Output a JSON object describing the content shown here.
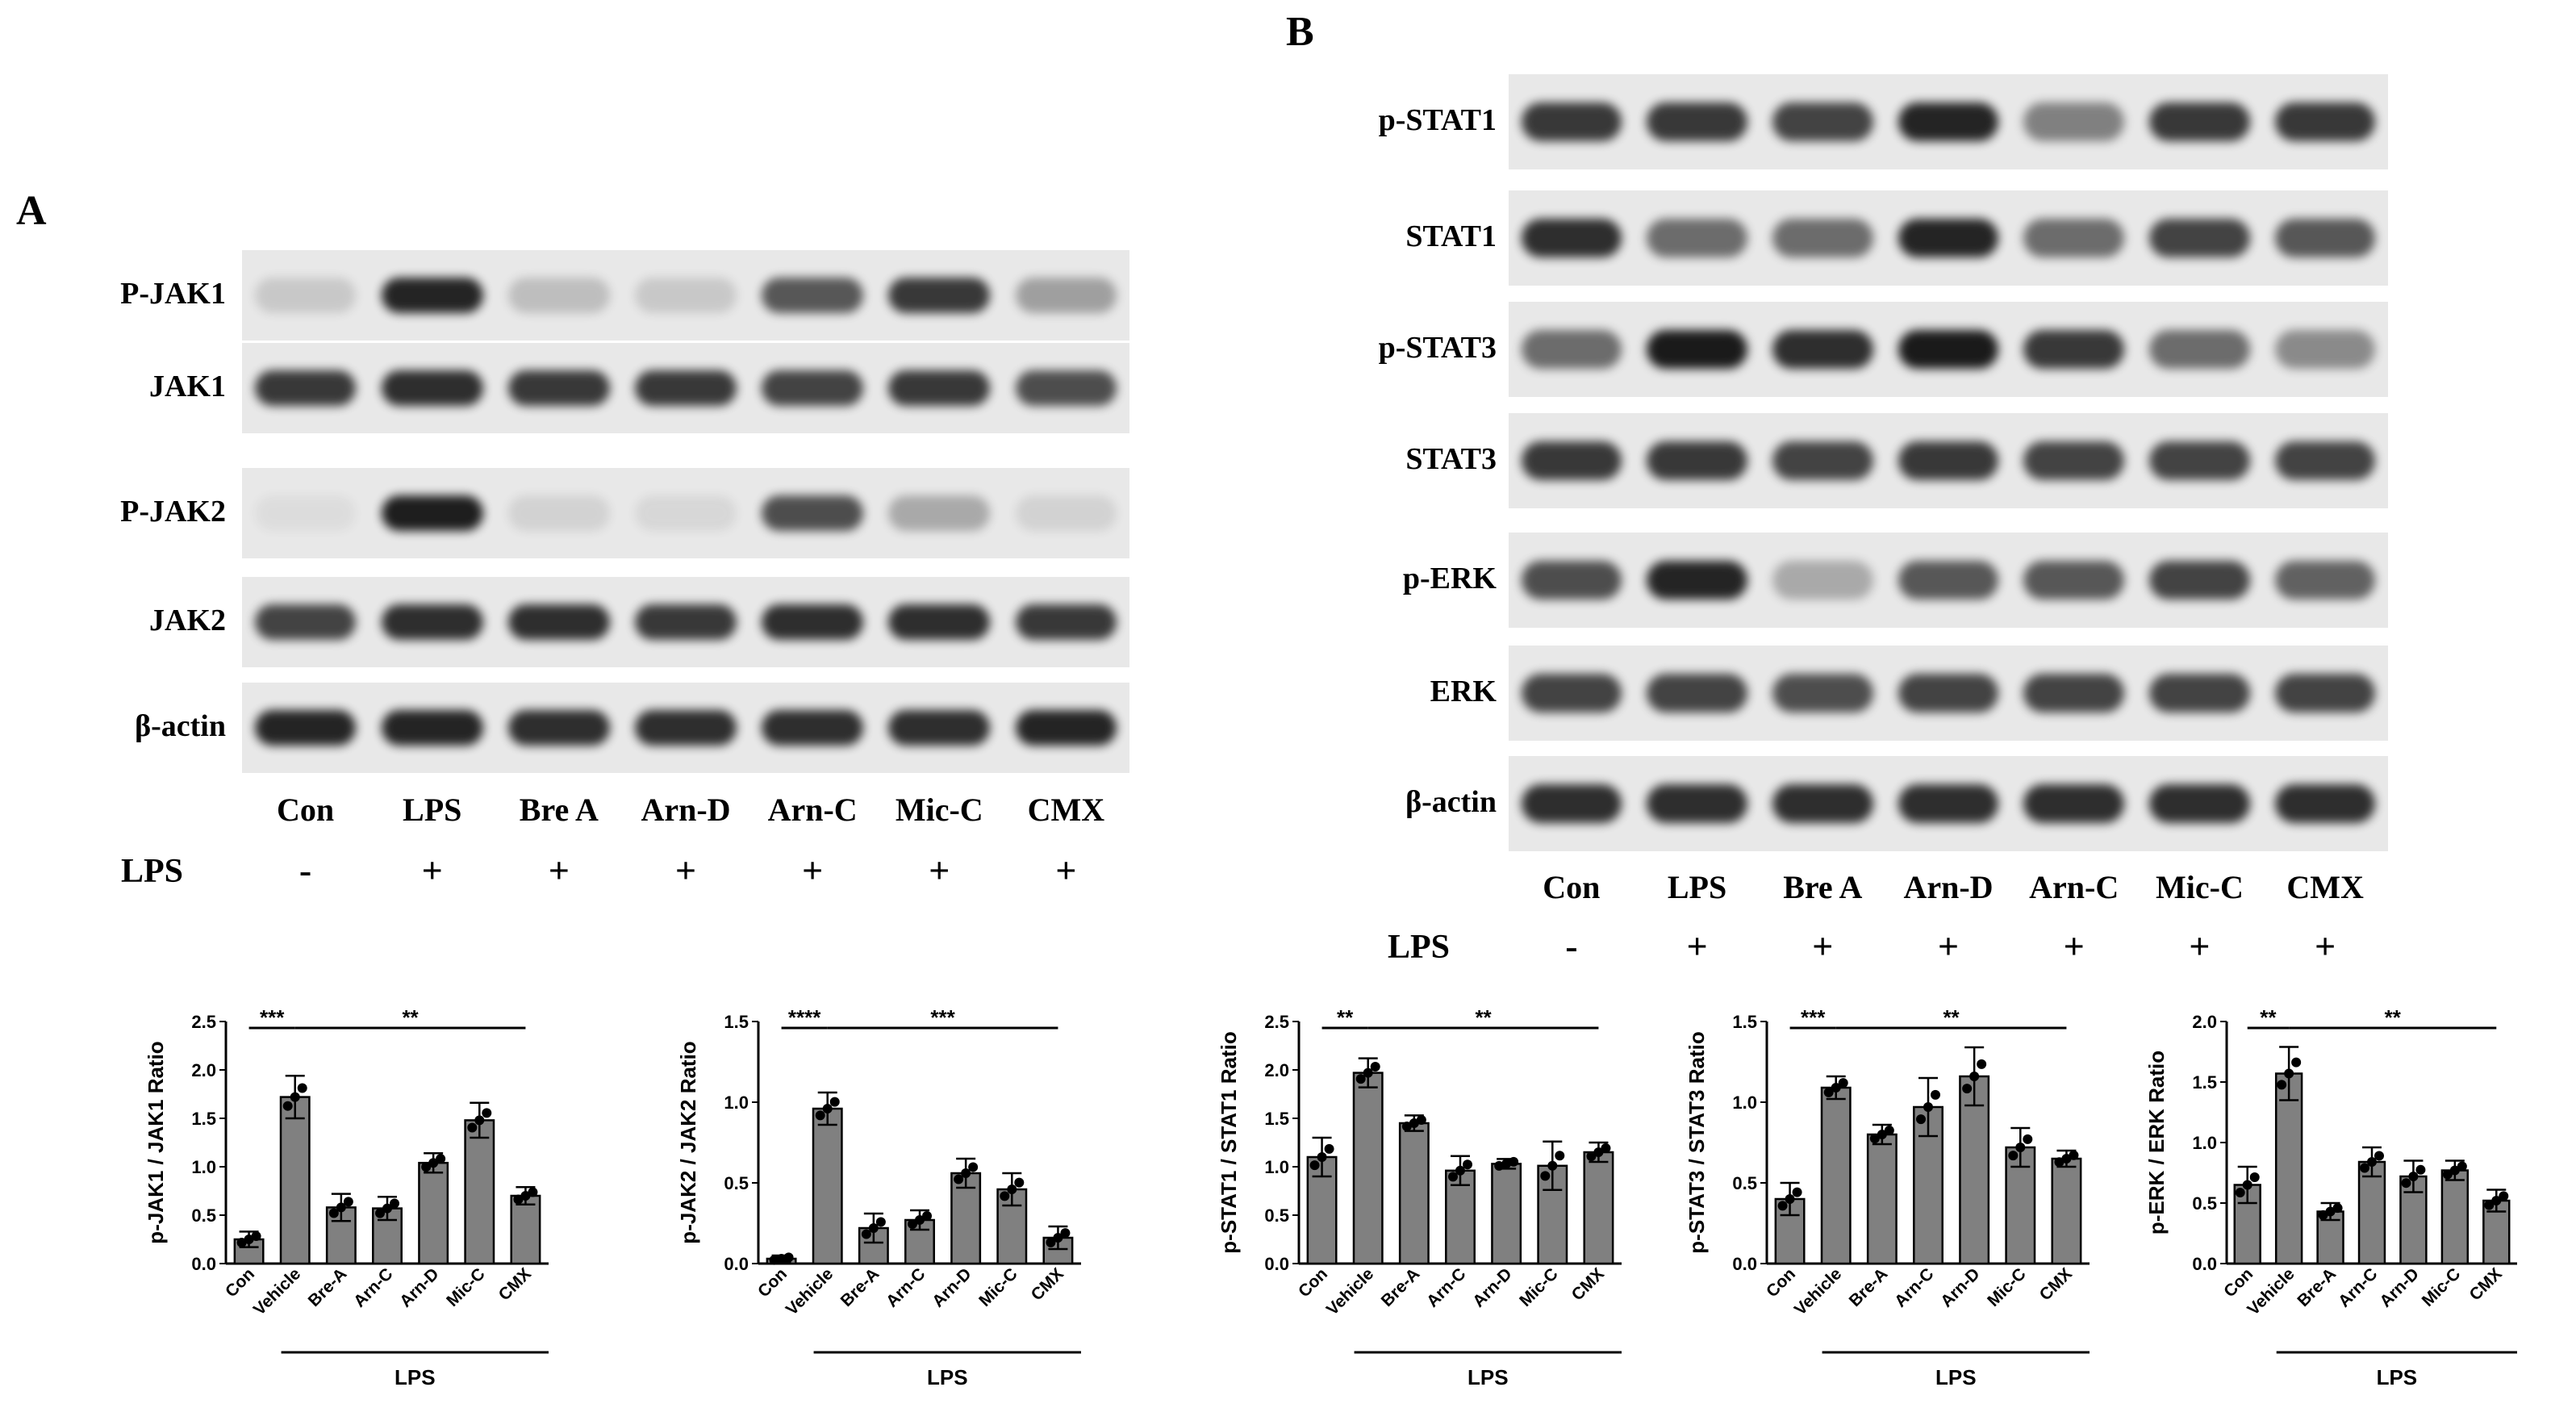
{
  "panels": {
    "a": "A",
    "b": "B"
  },
  "panel_a": {
    "blots": [
      "P-JAK1",
      "JAK1",
      "P-JAK2",
      "JAK2",
      "β-actin"
    ],
    "lanes": [
      "Con",
      "LPS",
      "Bre A",
      "Arn-D",
      "Arn-C",
      "Mic-C",
      "CMX"
    ],
    "lps_label": "LPS",
    "lps_signs": [
      "-",
      "+",
      "+",
      "+",
      "+",
      "+",
      "+"
    ]
  },
  "panel_b": {
    "blots": [
      "p-STAT1",
      "STAT1",
      "p-STAT3",
      "STAT3",
      "p-ERK",
      "ERK",
      "β-actin"
    ],
    "lanes": [
      "Con",
      "LPS",
      "Bre A",
      "Arn-D",
      "Arn-C",
      "Mic-C",
      "CMX"
    ],
    "lps_label": "LPS",
    "lps_signs": [
      "-",
      "+",
      "+",
      "+",
      "+",
      "+",
      "+"
    ]
  },
  "colors": {
    "bar": "#808080",
    "band": "#1a1a1a",
    "blot_bg": "#e8e8e8"
  },
  "chart_data": [
    {
      "type": "bar",
      "categories": [
        "Con",
        "Vehicle",
        "Bre-A",
        "Arn-C",
        "Arn-D",
        "Mic-C",
        "CMX"
      ],
      "values": [
        0.25,
        1.72,
        0.58,
        0.57,
        1.04,
        1.48,
        0.7
      ],
      "errors": [
        0.08,
        0.22,
        0.14,
        0.12,
        0.1,
        0.18,
        0.09
      ],
      "ylabel": "p-JAK1 / JAK1 Ratio",
      "ylim": [
        0,
        2.5
      ],
      "yticks": [
        "0.0",
        "0.5",
        "1.0",
        "1.5",
        "2.0",
        "2.5"
      ],
      "group_label": "LPS",
      "sig": [
        "***",
        "**"
      ]
    },
    {
      "type": "bar",
      "categories": [
        "Con",
        "Vehicle",
        "Bre-A",
        "Arn-C",
        "Arn-D",
        "Mic-C",
        "CMX"
      ],
      "values": [
        0.03,
        0.96,
        0.22,
        0.27,
        0.56,
        0.46,
        0.16
      ],
      "errors": [
        0.02,
        0.1,
        0.09,
        0.06,
        0.09,
        0.1,
        0.07
      ],
      "ylabel": "p-JAK2 / JAK2 Ratio",
      "ylim": [
        0,
        1.5
      ],
      "yticks": [
        "0.0",
        "0.5",
        "1.0",
        "1.5"
      ],
      "group_label": "LPS",
      "sig": [
        "****",
        "***"
      ]
    },
    {
      "type": "bar",
      "categories": [
        "Con",
        "Vehicle",
        "Bre-A",
        "Arn-C",
        "Arn-D",
        "Mic-C",
        "CMX"
      ],
      "values": [
        1.1,
        1.97,
        1.45,
        0.96,
        1.03,
        1.01,
        1.15
      ],
      "errors": [
        0.2,
        0.15,
        0.08,
        0.15,
        0.05,
        0.25,
        0.1
      ],
      "ylabel": "p-STAT1 / STAT1 Ratio",
      "ylim": [
        0,
        2.5
      ],
      "yticks": [
        "0.0",
        "0.5",
        "1.0",
        "1.5",
        "2.0",
        "2.5"
      ],
      "group_label": "LPS",
      "sig": [
        "**",
        "**"
      ]
    },
    {
      "type": "bar",
      "categories": [
        "Con",
        "Vehicle",
        "Bre-A",
        "Arn-C",
        "Arn-D",
        "Mic-C",
        "CMX"
      ],
      "values": [
        0.4,
        1.09,
        0.8,
        0.97,
        1.16,
        0.72,
        0.65
      ],
      "errors": [
        0.1,
        0.07,
        0.06,
        0.18,
        0.18,
        0.12,
        0.05
      ],
      "ylabel": "p-STAT3 / STAT3 Ratio",
      "ylim": [
        0,
        1.5
      ],
      "yticks": [
        "0.0",
        "0.5",
        "1.0",
        "1.5"
      ],
      "group_label": "LPS",
      "sig": [
        "***",
        "**"
      ]
    },
    {
      "type": "bar",
      "categories": [
        "Con",
        "Vehicle",
        "Bre-A",
        "Arn-C",
        "Arn-D",
        "Mic-C",
        "CMX"
      ],
      "values": [
        0.65,
        1.57,
        0.43,
        0.84,
        0.72,
        0.77,
        0.52
      ],
      "errors": [
        0.15,
        0.22,
        0.07,
        0.12,
        0.13,
        0.08,
        0.09
      ],
      "ylabel": "p-ERK / ERK Ratio",
      "ylim": [
        0,
        2.0
      ],
      "yticks": [
        "0.0",
        "0.5",
        "1.0",
        "1.5",
        "2.0"
      ],
      "group_label": "LPS",
      "sig": [
        "**",
        "**"
      ]
    }
  ]
}
